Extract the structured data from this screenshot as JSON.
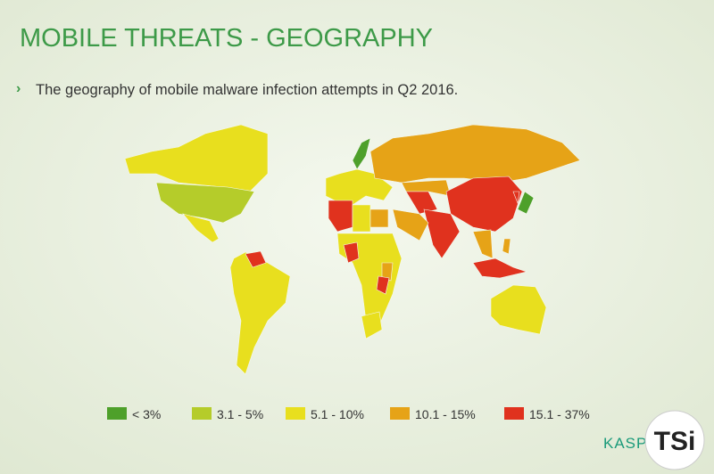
{
  "header": {
    "title": "MOBILE THREATS - GEOGRAPHY",
    "subtitle": "The geography of mobile malware infection attempts in Q2 2016."
  },
  "legend": [
    {
      "label": "< 3%",
      "color": "#4ea02a"
    },
    {
      "label": "3.1 - 5%",
      "color": "#b5cc2a"
    },
    {
      "label": "5.1 - 10%",
      "color": "#e8df1e"
    },
    {
      "label": "10.1 - 15%",
      "color": "#e6a317"
    },
    {
      "label": "15.1 - 37%",
      "color": "#e0321e"
    }
  ],
  "brand": "KASPERSKY",
  "watermark": "TSi"
}
